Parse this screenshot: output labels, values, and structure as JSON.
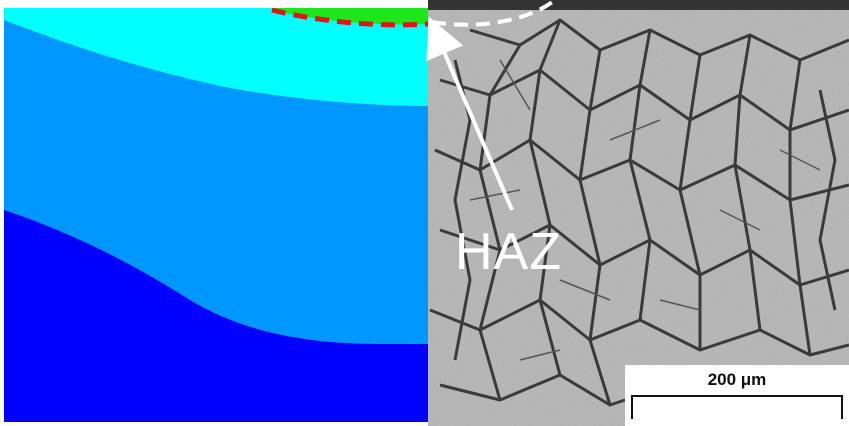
{
  "figure": {
    "haz_label": "HAZ",
    "scale_bar_label": "200 μm"
  },
  "colors": {
    "zone_green": "#1de61a",
    "zone_cyan": "#00ffff",
    "zone_mid_blue": "#0098ff",
    "zone_dark_blue": "#0000ff",
    "fusion_line": "#e01414",
    "micrograph_base": "#bdbdbd",
    "grain_boundary": "#3a3a3a",
    "annotation": "#ffffff"
  }
}
